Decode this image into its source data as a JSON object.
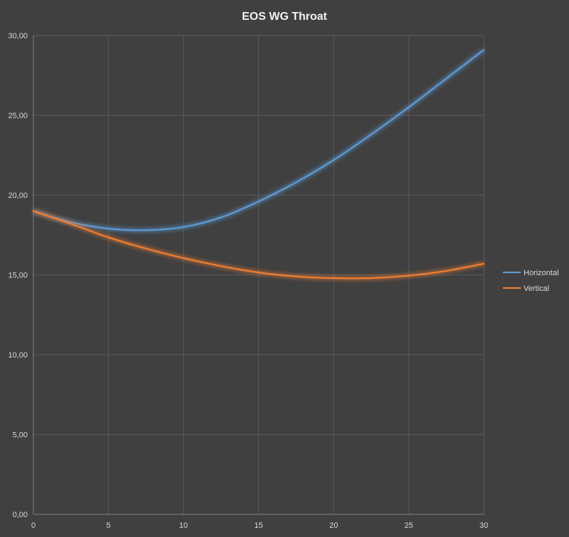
{
  "chart_data": {
    "type": "line",
    "title": "EOS WG Throat",
    "xlabel": "",
    "ylabel": "",
    "xlim": [
      0,
      30
    ],
    "ylim": [
      0,
      30
    ],
    "x_ticks": [
      "0",
      "5",
      "10",
      "15",
      "20",
      "25",
      "30"
    ],
    "y_ticks": [
      "0,00",
      "5,00",
      "10,00",
      "15,00",
      "20,00",
      "25,00",
      "30,00"
    ],
    "grid": true,
    "legend_position": "right",
    "x": [
      0,
      2.5,
      5,
      7.5,
      10,
      12.5,
      15,
      17.5,
      20,
      22.5,
      25,
      27.5,
      30
    ],
    "series": [
      {
        "name": "Horizontal",
        "color": "#5b9bd5",
        "values": [
          19.0,
          18.3,
          17.9,
          17.8,
          18.0,
          18.6,
          19.6,
          20.8,
          22.2,
          23.8,
          25.5,
          27.3,
          29.1
        ]
      },
      {
        "name": "Vertical",
        "color": "#ed7d31",
        "values": [
          19.0,
          18.2,
          17.35,
          16.65,
          16.05,
          15.55,
          15.15,
          14.9,
          14.8,
          14.8,
          14.95,
          15.25,
          15.7
        ]
      }
    ]
  }
}
